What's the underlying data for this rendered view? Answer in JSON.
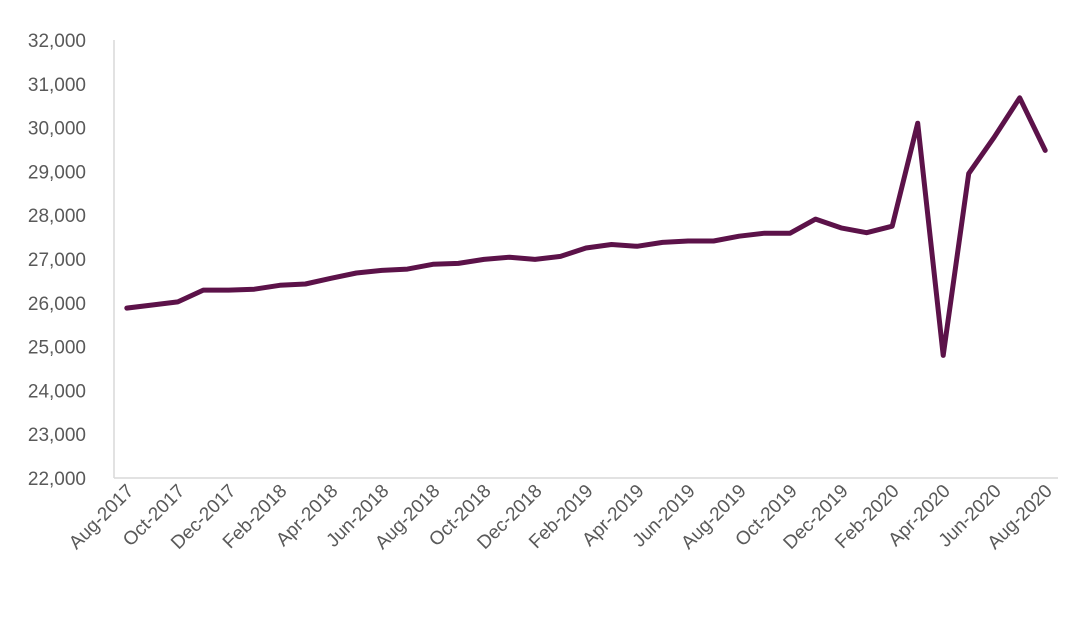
{
  "chart_data": {
    "type": "line",
    "title": "",
    "xlabel": "",
    "ylabel": "",
    "ylim": [
      22000,
      32000
    ],
    "yticks": [
      22000,
      23000,
      24000,
      25000,
      26000,
      27000,
      28000,
      29000,
      30000,
      31000,
      32000
    ],
    "ytick_labels": [
      "22,000",
      "23,000",
      "24,000",
      "25,000",
      "26,000",
      "27,000",
      "28,000",
      "29,000",
      "30,000",
      "31,000",
      "32,000"
    ],
    "grid": false,
    "legend": "none",
    "line_color": "#5c1249",
    "x": [
      "Aug-2017",
      "Sep-2017",
      "Oct-2017",
      "Nov-2017",
      "Dec-2017",
      "Jan-2018",
      "Feb-2018",
      "Mar-2018",
      "Apr-2018",
      "May-2018",
      "Jun-2018",
      "Jul-2018",
      "Aug-2018",
      "Sep-2018",
      "Oct-2018",
      "Nov-2018",
      "Dec-2018",
      "Jan-2019",
      "Feb-2019",
      "Mar-2019",
      "Apr-2019",
      "May-2019",
      "Jun-2019",
      "Jul-2019",
      "Aug-2019",
      "Sep-2019",
      "Oct-2019",
      "Nov-2019",
      "Dec-2019",
      "Jan-2020",
      "Feb-2020",
      "Mar-2020",
      "Apr-2020",
      "May-2020",
      "Jun-2020",
      "Jul-2020",
      "Aug-2020"
    ],
    "xtick_labels": [
      "Aug-2017",
      "Oct-2017",
      "Dec-2017",
      "Feb-2018",
      "Apr-2018",
      "Jun-2018",
      "Aug-2018",
      "Oct-2018",
      "Dec-2018",
      "Feb-2019",
      "Apr-2019",
      "Jun-2019",
      "Aug-2019",
      "Oct-2019",
      "Dec-2019",
      "Feb-2020",
      "Apr-2020",
      "Jun-2020",
      "Aug-2020"
    ],
    "series": [
      {
        "values": [
          25880,
          25950,
          26020,
          26290,
          26290,
          26310,
          26400,
          26430,
          26560,
          26680,
          26740,
          26770,
          26880,
          26900,
          26990,
          27040,
          26990,
          27060,
          27250,
          27330,
          27290,
          27380,
          27410,
          27410,
          27520,
          27590,
          27590,
          27910,
          27710,
          27600,
          27750,
          30100,
          24800,
          28950,
          29780,
          30680,
          29480
        ]
      }
    ]
  }
}
